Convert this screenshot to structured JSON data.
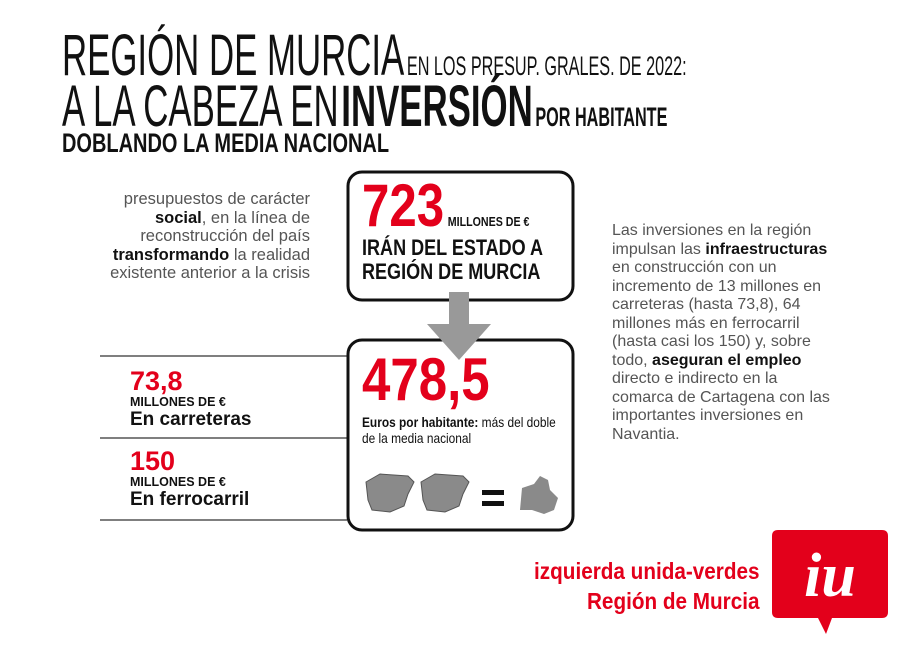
{
  "header": {
    "title_main": "REGIÓN DE MURCIA",
    "title_sub": "EN LOS PRESUP. GRALES. DE 2022:",
    "line2_light": "A LA CABEZA EN",
    "line2_bold": "INVERSIÓN",
    "line2_small": "POR HABITANTE",
    "line3": "DOBLANDO LA MEDIA NACIONAL"
  },
  "intro": {
    "parts": [
      "presupuestos de carácter",
      "social",
      ", en la línea de reconstrucción del país",
      "transformando",
      "la realidad existente anterior a la crisis"
    ]
  },
  "box_total": {
    "amount": "723",
    "unit": "MILLONES DE €",
    "text": "IRÁN DEL ESTADO A REGIÓN DE MURCIA"
  },
  "box_per_capita": {
    "amount": "478,5",
    "text_bold": "Euros por habitante:",
    "text": "más del doble de la media nacional"
  },
  "stats": [
    {
      "amount": "73,8",
      "unit": "MILLONES DE €",
      "label": "En carreteras"
    },
    {
      "amount": "150",
      "unit": "MILLONES DE €",
      "label": "En ferrocarril"
    }
  ],
  "details": {
    "parts": [
      "Las inversiones en la región impulsan las",
      "infraestructuras",
      "en construcción con un incremento de 13 millones en carreteras (hasta 73,8), 64 millones más en ferrocarril (hasta casi los 150) y, sobre todo,",
      "aseguran el empleo",
      "directo e indirecto en la comarca de Cartagena con las importantes inversiones en Navantia."
    ]
  },
  "footer": {
    "org": "izquierda unida-verdes",
    "region": "Región de Murcia",
    "logo": "iu"
  }
}
